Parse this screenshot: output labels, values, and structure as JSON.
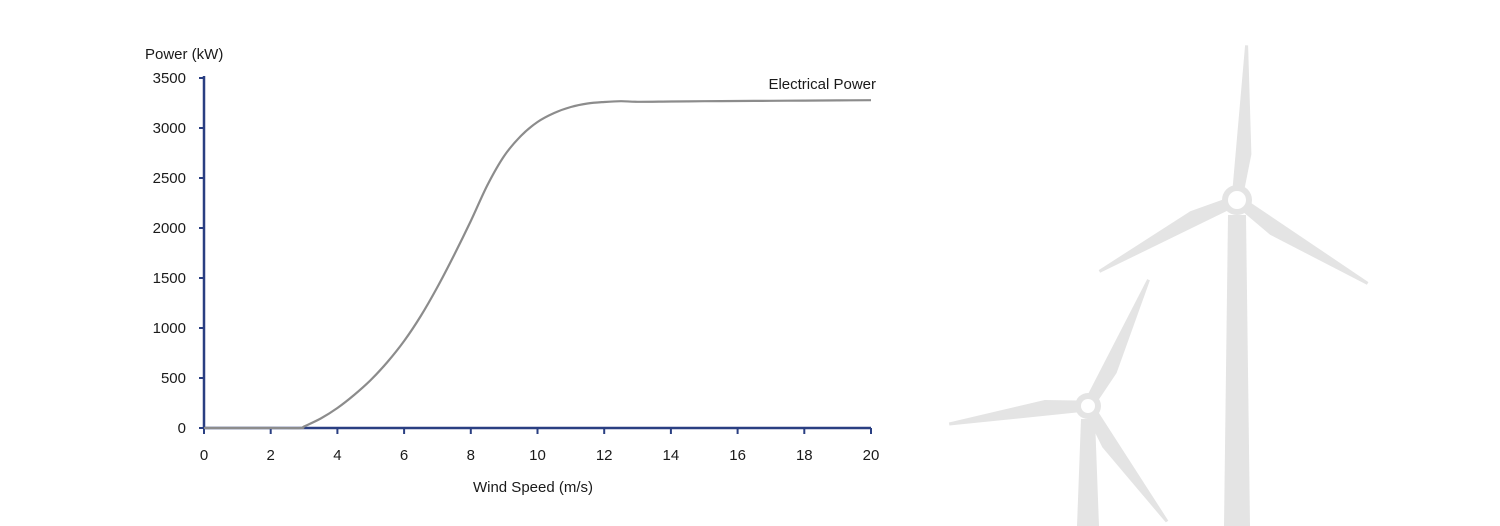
{
  "chart_data": {
    "type": "line",
    "xlabel": "Wind Speed (m/s)",
    "ylabel": "Power (kW)",
    "xlim": [
      0,
      20
    ],
    "ylim": [
      0,
      3500
    ],
    "xticks": [
      0,
      2,
      4,
      6,
      8,
      10,
      12,
      14,
      16,
      18,
      20
    ],
    "yticks": [
      0,
      500,
      1000,
      1500,
      2000,
      2500,
      3000,
      3500
    ],
    "grid": false,
    "series": [
      {
        "name": "Electrical Power",
        "color": "#8c8c8c",
        "x": [
          0,
          2,
          2.9,
          3,
          3.5,
          4,
          4.5,
          5,
          5.5,
          6,
          6.5,
          7,
          7.5,
          8,
          8.5,
          9,
          9.5,
          10,
          10.5,
          11,
          11.5,
          12,
          12.5,
          13,
          14,
          15,
          16,
          17,
          18,
          19,
          20
        ],
        "y": [
          0,
          0,
          0,
          15,
          95,
          200,
          330,
          480,
          660,
          870,
          1120,
          1410,
          1730,
          2070,
          2430,
          2720,
          2920,
          3060,
          3150,
          3210,
          3245,
          3260,
          3268,
          3262,
          3265,
          3268,
          3270,
          3272,
          3274,
          3276,
          3278
        ]
      }
    ],
    "colors": {
      "axis": "#2a3f82",
      "line": "#8c8c8c",
      "turbine": "#e4e4e4"
    }
  },
  "decoration": {
    "icon": "wind-turbine-icon"
  }
}
